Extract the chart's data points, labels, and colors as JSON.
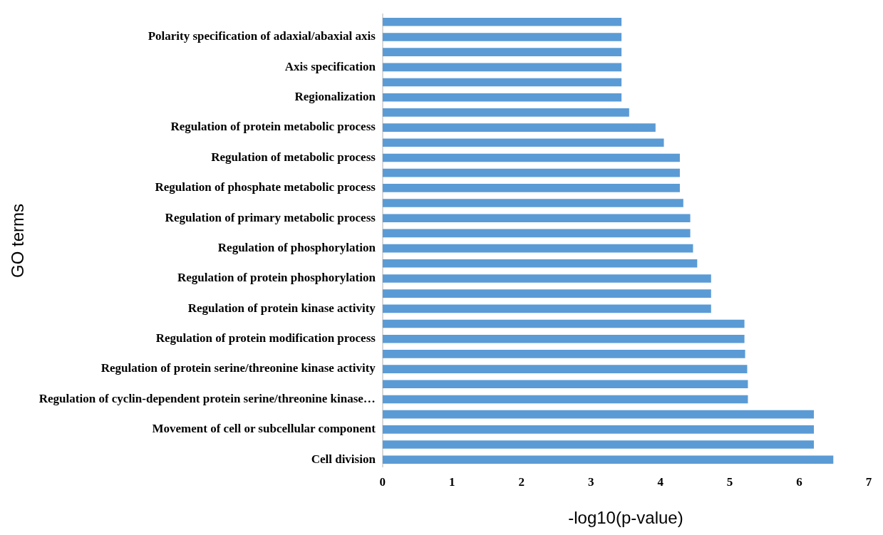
{
  "chart_data": {
    "type": "bar",
    "orientation": "horizontal",
    "xlabel": "-log10(p-value)",
    "ylabel": "GO terms",
    "categories": [
      null,
      "Polarity specification of adaxial/abaxial axis",
      null,
      "Axis specification",
      null,
      "Regionalization",
      null,
      "Regulation of protein metabolic process",
      null,
      "Regulation of metabolic process",
      null,
      "Regulation of phosphate metabolic process",
      null,
      "Regulation of primary metabolic process",
      null,
      "Regulation of phosphorylation",
      null,
      "Regulation of protein phosphorylation",
      null,
      "Regulation of protein kinase activity",
      null,
      "Regulation of protein modification process",
      null,
      "Regulation of protein serine/threonine kinase activity",
      null,
      "Regulation of cyclin-dependent protein serine/threonine kinase…",
      null,
      "Movement of cell or subcellular component",
      null,
      "Cell division"
    ],
    "values": [
      3.44,
      3.44,
      3.44,
      3.44,
      3.44,
      3.44,
      3.55,
      3.93,
      4.05,
      4.28,
      4.28,
      4.28,
      4.33,
      4.43,
      4.43,
      4.47,
      4.53,
      4.73,
      4.73,
      4.73,
      5.21,
      5.21,
      5.22,
      5.25,
      5.26,
      5.26,
      6.21,
      6.21,
      6.21,
      6.49
    ],
    "color": "#5b9bd5",
    "xlim": [
      0,
      7
    ],
    "xticks": [
      0,
      1,
      2,
      3,
      4,
      5,
      6,
      7
    ],
    "grid": false,
    "legend": false
  }
}
